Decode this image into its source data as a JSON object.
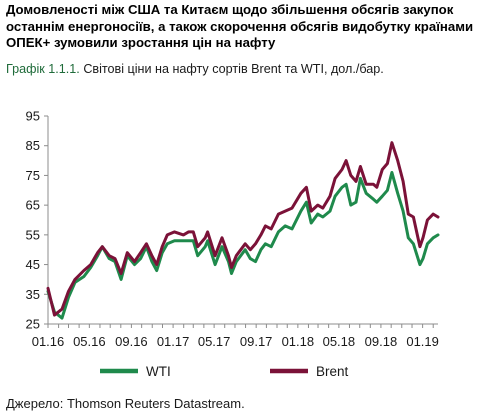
{
  "headline": "Домовленості між США та Китаєм щодо збільшення обсягів закупок останнім енергоносіїв, а також скорочення обсягів видобутку країнами ОПЕК+ зумовили зростання цін на нафту",
  "caption": {
    "number": "Графік 1.1.1.",
    "text": "Світові ціни на нафту сортів Brent та WTI, дол./бар."
  },
  "source": "Джерело: Thomson Reuters Datastream.",
  "colors": {
    "wti": "#1f8a4c",
    "brent": "#7b1238",
    "axis": "#8c8c8c"
  },
  "chart_data": {
    "type": "line",
    "title": "",
    "xlabel": "",
    "ylabel": "",
    "ylim": [
      25,
      95
    ],
    "yticks": [
      25,
      35,
      45,
      55,
      65,
      75,
      85,
      95
    ],
    "x_range": [
      "2016-01",
      "2019-02"
    ],
    "x_tick_labels": [
      "01.16",
      "05.16",
      "09.16",
      "01.17",
      "05.17",
      "09.17",
      "01.18",
      "05.18",
      "09.18",
      "01.19"
    ],
    "grid": false,
    "legend": "bottom",
    "series": [
      {
        "name": "WTI",
        "color": "#1f8a4c",
        "points": [
          [
            "2016-01-01",
            36
          ],
          [
            "2016-01-20",
            29
          ],
          [
            "2016-02-11",
            27
          ],
          [
            "2016-03-01",
            34
          ],
          [
            "2016-03-20",
            39
          ],
          [
            "2016-04-15",
            41
          ],
          [
            "2016-05-05",
            44
          ],
          [
            "2016-05-25",
            48
          ],
          [
            "2016-06-08",
            51
          ],
          [
            "2016-06-28",
            47
          ],
          [
            "2016-07-15",
            46
          ],
          [
            "2016-08-02",
            40
          ],
          [
            "2016-08-20",
            48
          ],
          [
            "2016-09-10",
            45
          ],
          [
            "2016-09-28",
            47
          ],
          [
            "2016-10-15",
            51
          ],
          [
            "2016-10-31",
            46
          ],
          [
            "2016-11-14",
            43
          ],
          [
            "2016-11-30",
            49
          ],
          [
            "2016-12-15",
            52
          ],
          [
            "2017-01-05",
            53
          ],
          [
            "2017-01-31",
            53
          ],
          [
            "2017-02-15",
            53
          ],
          [
            "2017-03-01",
            53
          ],
          [
            "2017-03-14",
            48
          ],
          [
            "2017-04-05",
            51
          ],
          [
            "2017-04-12",
            53
          ],
          [
            "2017-05-04",
            45
          ],
          [
            "2017-05-24",
            51
          ],
          [
            "2017-06-12",
            46
          ],
          [
            "2017-06-21",
            42
          ],
          [
            "2017-07-05",
            46
          ],
          [
            "2017-07-31",
            50
          ],
          [
            "2017-08-15",
            47
          ],
          [
            "2017-08-30",
            46
          ],
          [
            "2017-09-15",
            50
          ],
          [
            "2017-09-28",
            52
          ],
          [
            "2017-10-15",
            51
          ],
          [
            "2017-11-05",
            56
          ],
          [
            "2017-11-25",
            58
          ],
          [
            "2017-12-15",
            57
          ],
          [
            "2018-01-10",
            63
          ],
          [
            "2018-01-26",
            66
          ],
          [
            "2018-02-09",
            59
          ],
          [
            "2018-02-28",
            62
          ],
          [
            "2018-03-15",
            61
          ],
          [
            "2018-04-05",
            63
          ],
          [
            "2018-04-20",
            68
          ],
          [
            "2018-05-10",
            71
          ],
          [
            "2018-05-22",
            72
          ],
          [
            "2018-06-05",
            65
          ],
          [
            "2018-06-20",
            66
          ],
          [
            "2018-07-03",
            74
          ],
          [
            "2018-07-20",
            69
          ],
          [
            "2018-08-10",
            67
          ],
          [
            "2018-08-20",
            66
          ],
          [
            "2018-09-05",
            68
          ],
          [
            "2018-09-20",
            70
          ],
          [
            "2018-10-03",
            76
          ],
          [
            "2018-10-20",
            69
          ],
          [
            "2018-11-05",
            63
          ],
          [
            "2018-11-20",
            54
          ],
          [
            "2018-12-05",
            52
          ],
          [
            "2018-12-24",
            45
          ],
          [
            "2019-01-02",
            47
          ],
          [
            "2019-01-15",
            52
          ],
          [
            "2019-02-01",
            54
          ],
          [
            "2019-02-15",
            55
          ]
        ]
      },
      {
        "name": "Brent",
        "color": "#7b1238",
        "points": [
          [
            "2016-01-01",
            37
          ],
          [
            "2016-01-20",
            28
          ],
          [
            "2016-02-11",
            30
          ],
          [
            "2016-03-01",
            36
          ],
          [
            "2016-03-20",
            40
          ],
          [
            "2016-04-15",
            43
          ],
          [
            "2016-05-05",
            45
          ],
          [
            "2016-05-25",
            49
          ],
          [
            "2016-06-08",
            51
          ],
          [
            "2016-06-28",
            48
          ],
          [
            "2016-07-15",
            47
          ],
          [
            "2016-08-02",
            42
          ],
          [
            "2016-08-20",
            49
          ],
          [
            "2016-09-10",
            46
          ],
          [
            "2016-09-28",
            49
          ],
          [
            "2016-10-15",
            52
          ],
          [
            "2016-10-31",
            48
          ],
          [
            "2016-11-14",
            45
          ],
          [
            "2016-11-30",
            51
          ],
          [
            "2016-12-15",
            55
          ],
          [
            "2017-01-05",
            56
          ],
          [
            "2017-01-31",
            55
          ],
          [
            "2017-02-15",
            56
          ],
          [
            "2017-03-01",
            56
          ],
          [
            "2017-03-14",
            51
          ],
          [
            "2017-04-05",
            54
          ],
          [
            "2017-04-12",
            56
          ],
          [
            "2017-05-04",
            48
          ],
          [
            "2017-05-24",
            54
          ],
          [
            "2017-06-12",
            48
          ],
          [
            "2017-06-21",
            44
          ],
          [
            "2017-07-05",
            48
          ],
          [
            "2017-07-31",
            52
          ],
          [
            "2017-08-15",
            50
          ],
          [
            "2017-08-30",
            52
          ],
          [
            "2017-09-15",
            55
          ],
          [
            "2017-09-28",
            58
          ],
          [
            "2017-10-15",
            57
          ],
          [
            "2017-11-05",
            62
          ],
          [
            "2017-11-25",
            63
          ],
          [
            "2017-12-15",
            64
          ],
          [
            "2018-01-10",
            69
          ],
          [
            "2018-01-26",
            71
          ],
          [
            "2018-02-09",
            63
          ],
          [
            "2018-02-28",
            65
          ],
          [
            "2018-03-15",
            64
          ],
          [
            "2018-04-05",
            68
          ],
          [
            "2018-04-20",
            74
          ],
          [
            "2018-05-10",
            77
          ],
          [
            "2018-05-22",
            80
          ],
          [
            "2018-06-05",
            75
          ],
          [
            "2018-06-20",
            73
          ],
          [
            "2018-07-03",
            78
          ],
          [
            "2018-07-20",
            72
          ],
          [
            "2018-08-10",
            72
          ],
          [
            "2018-08-20",
            71
          ],
          [
            "2018-09-05",
            77
          ],
          [
            "2018-09-20",
            79
          ],
          [
            "2018-10-03",
            86
          ],
          [
            "2018-10-20",
            80
          ],
          [
            "2018-11-05",
            73
          ],
          [
            "2018-11-20",
            62
          ],
          [
            "2018-12-05",
            61
          ],
          [
            "2018-12-24",
            51
          ],
          [
            "2019-01-02",
            54
          ],
          [
            "2019-01-15",
            60
          ],
          [
            "2019-02-01",
            62
          ],
          [
            "2019-02-15",
            61
          ]
        ]
      }
    ]
  }
}
